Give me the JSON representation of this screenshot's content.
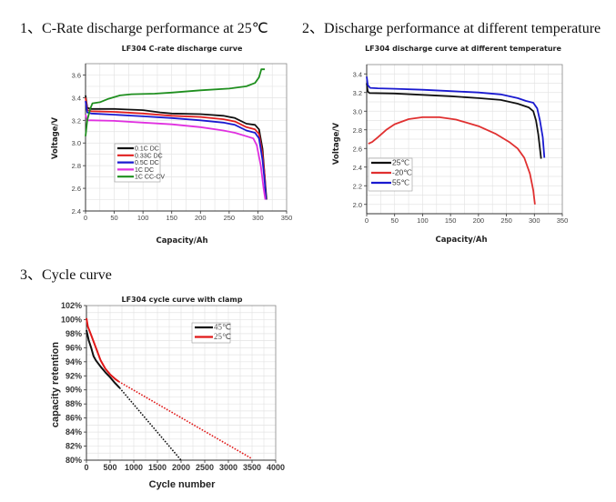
{
  "sections": [
    {
      "number": "1、",
      "title": "C-Rate discharge performance at 25℃"
    },
    {
      "number": "2、",
      "title": "Discharge performance at different temperature"
    },
    {
      "number": "3、",
      "title": "Cycle curve"
    }
  ],
  "chart_data": [
    {
      "type": "line",
      "title": "LF304 C-rate discharge curve",
      "xlabel": "Capacity/Ah",
      "ylabel": "Voltage/V",
      "xlim": [
        0,
        350
      ],
      "ylim": [
        2.4,
        3.7
      ],
      "xticks": [
        "0",
        "50",
        "100",
        "150",
        "200",
        "250",
        "300",
        "350"
      ],
      "yticks": [
        "2.4",
        "2.6",
        "2.8",
        "3.0",
        "3.2",
        "3.4",
        "3.6"
      ],
      "xtick_values": [
        0,
        50,
        100,
        150,
        200,
        250,
        300,
        350
      ],
      "ytick_values": [
        2.4,
        2.6,
        2.8,
        3.0,
        3.2,
        3.4,
        3.6
      ],
      "grid": true,
      "legend_position": "lower-left",
      "series": [
        {
          "name": "0.1C DC",
          "color": "#111111",
          "points": [
            [
              0,
              3.42
            ],
            [
              3,
              3.31
            ],
            [
              10,
              3.3
            ],
            [
              50,
              3.3
            ],
            [
              100,
              3.29
            ],
            [
              130,
              3.27
            ],
            [
              150,
              3.26
            ],
            [
              200,
              3.255
            ],
            [
              240,
              3.24
            ],
            [
              260,
              3.22
            ],
            [
              280,
              3.17
            ],
            [
              295,
              3.16
            ],
            [
              302,
              3.12
            ],
            [
              308,
              2.95
            ],
            [
              312,
              2.7
            ],
            [
              315,
              2.5
            ]
          ]
        },
        {
          "name": "0.33C DC",
          "color": "#e02020",
          "points": [
            [
              0,
              3.4
            ],
            [
              3,
              3.29
            ],
            [
              10,
              3.28
            ],
            [
              50,
              3.275
            ],
            [
              100,
              3.26
            ],
            [
              150,
              3.24
            ],
            [
              200,
              3.23
            ],
            [
              240,
              3.21
            ],
            [
              260,
              3.19
            ],
            [
              280,
              3.14
            ],
            [
              295,
              3.12
            ],
            [
              302,
              3.08
            ],
            [
              308,
              2.9
            ],
            [
              312,
              2.7
            ],
            [
              314,
              2.5
            ]
          ]
        },
        {
          "name": "0.5C DC",
          "color": "#1a1ad0",
          "points": [
            [
              0,
              3.37
            ],
            [
              3,
              3.27
            ],
            [
              10,
              3.26
            ],
            [
              50,
              3.25
            ],
            [
              100,
              3.235
            ],
            [
              150,
              3.22
            ],
            [
              200,
              3.2
            ],
            [
              240,
              3.18
            ],
            [
              260,
              3.16
            ],
            [
              280,
              3.11
            ],
            [
              295,
              3.09
            ],
            [
              302,
              3.04
            ],
            [
              308,
              2.85
            ],
            [
              312,
              2.65
            ],
            [
              314,
              2.5
            ]
          ]
        },
        {
          "name": "1C DC",
          "color": "#e030e0",
          "points": [
            [
              0,
              3.25
            ],
            [
              3,
              3.2
            ],
            [
              10,
              3.2
            ],
            [
              50,
              3.195
            ],
            [
              100,
              3.18
            ],
            [
              150,
              3.165
            ],
            [
              200,
              3.14
            ],
            [
              240,
              3.11
            ],
            [
              260,
              3.09
            ],
            [
              280,
              3.06
            ],
            [
              292,
              3.04
            ],
            [
              298,
              2.98
            ],
            [
              305,
              2.8
            ],
            [
              310,
              2.6
            ],
            [
              313,
              2.5
            ]
          ]
        },
        {
          "name": "1C CC-CV",
          "color": "#1f8f1f",
          "points": [
            [
              0,
              3.06
            ],
            [
              3,
              3.2
            ],
            [
              8,
              3.3
            ],
            [
              12,
              3.35
            ],
            [
              25,
              3.36
            ],
            [
              40,
              3.39
            ],
            [
              60,
              3.42
            ],
            [
              80,
              3.43
            ],
            [
              120,
              3.435
            ],
            [
              150,
              3.445
            ],
            [
              200,
              3.465
            ],
            [
              250,
              3.48
            ],
            [
              280,
              3.5
            ],
            [
              295,
              3.53
            ],
            [
              302,
              3.58
            ],
            [
              306,
              3.65
            ],
            [
              312,
              3.65
            ]
          ]
        }
      ]
    },
    {
      "type": "line",
      "title": "LF304 discharge curve at different temperature",
      "xlabel": "Capacity/Ah",
      "ylabel": "Voltage/V",
      "xlim": [
        0,
        350
      ],
      "ylim": [
        1.9,
        3.5
      ],
      "xticks": [
        "0",
        "50",
        "100",
        "150",
        "200",
        "250",
        "300",
        "350"
      ],
      "yticks": [
        "2.0",
        "2.2",
        "2.4",
        "2.6",
        "2.8",
        "3.0",
        "3.2",
        "3.4"
      ],
      "xtick_values": [
        0,
        50,
        100,
        150,
        200,
        250,
        300,
        350
      ],
      "ytick_values": [
        2.0,
        2.2,
        2.4,
        2.6,
        2.8,
        3.0,
        3.2,
        3.4
      ],
      "grid": true,
      "legend_position": "lower-left",
      "series": [
        {
          "name": "25℃",
          "color": "#111111",
          "points": [
            [
              0,
              3.3
            ],
            [
              2,
              3.21
            ],
            [
              5,
              3.195
            ],
            [
              50,
              3.19
            ],
            [
              100,
              3.175
            ],
            [
              150,
              3.16
            ],
            [
              200,
              3.14
            ],
            [
              240,
              3.12
            ],
            [
              270,
              3.08
            ],
            [
              290,
              3.04
            ],
            [
              298,
              3.0
            ],
            [
              303,
              2.9
            ],
            [
              307,
              2.75
            ],
            [
              310,
              2.6
            ],
            [
              312,
              2.49
            ]
          ]
        },
        {
          "name": "-20℃",
          "color": "#e03030",
          "points": [
            [
              3,
              2.65
            ],
            [
              10,
              2.67
            ],
            [
              20,
              2.72
            ],
            [
              35,
              2.8
            ],
            [
              50,
              2.86
            ],
            [
              75,
              2.915
            ],
            [
              100,
              2.935
            ],
            [
              130,
              2.935
            ],
            [
              160,
              2.91
            ],
            [
              200,
              2.84
            ],
            [
              230,
              2.76
            ],
            [
              255,
              2.67
            ],
            [
              270,
              2.6
            ],
            [
              282,
              2.5
            ],
            [
              292,
              2.33
            ],
            [
              298,
              2.15
            ],
            [
              301,
              2.0
            ]
          ]
        },
        {
          "name": "55℃",
          "color": "#1a1ad0",
          "points": [
            [
              0,
              3.37
            ],
            [
              2,
              3.28
            ],
            [
              6,
              3.25
            ],
            [
              20,
              3.245
            ],
            [
              50,
              3.24
            ],
            [
              100,
              3.23
            ],
            [
              150,
              3.215
            ],
            [
              200,
              3.2
            ],
            [
              240,
              3.18
            ],
            [
              270,
              3.14
            ],
            [
              285,
              3.11
            ],
            [
              298,
              3.09
            ],
            [
              305,
              3.03
            ],
            [
              310,
              2.9
            ],
            [
              315,
              2.72
            ],
            [
              318,
              2.5
            ]
          ]
        }
      ]
    },
    {
      "type": "line",
      "title": "LF304 cycle curve with clamp",
      "xlabel": "Cycle number",
      "ylabel": "capacity retention",
      "xlim": [
        0,
        4000
      ],
      "ylim": [
        80,
        102
      ],
      "xticks": [
        "0",
        "500",
        "1000",
        "1500",
        "2000",
        "2500",
        "3000",
        "3500",
        "4000"
      ],
      "yticks": [
        "80%",
        "82%",
        "84%",
        "86%",
        "88%",
        "90%",
        "92%",
        "94%",
        "96%",
        "98%",
        "100%",
        "102%"
      ],
      "xtick_values": [
        0,
        500,
        1000,
        1500,
        2000,
        2500,
        3000,
        3500,
        4000
      ],
      "ytick_values": [
        80,
        82,
        84,
        86,
        88,
        90,
        92,
        94,
        96,
        98,
        100,
        102
      ],
      "grid": true,
      "legend_position": "top-right",
      "series": [
        {
          "name": "45℃",
          "color": "#111111",
          "points": [
            [
              0,
              98.5
            ],
            [
              50,
              97
            ],
            [
              100,
              96
            ],
            [
              150,
              94.8
            ],
            [
              200,
              94.2
            ],
            [
              300,
              93.3
            ],
            [
              400,
              92.5
            ],
            [
              500,
              91.8
            ],
            [
              600,
              91.0
            ],
            [
              700,
              90.3
            ]
          ],
          "extrapolation": [
            [
              700,
              90.3
            ],
            [
              2000,
              80
            ]
          ]
        },
        {
          "name": "25℃",
          "color": "#e01818",
          "points": [
            [
              0,
              100.2
            ],
            [
              30,
              99
            ],
            [
              100,
              97.8
            ],
            [
              200,
              96
            ],
            [
              300,
              94.2
            ],
            [
              400,
              93
            ],
            [
              500,
              92.2
            ],
            [
              600,
              91.6
            ],
            [
              680,
              91.2
            ]
          ],
          "extrapolation": [
            [
              680,
              91.2
            ],
            [
              3500,
              80.2
            ]
          ]
        }
      ]
    }
  ]
}
